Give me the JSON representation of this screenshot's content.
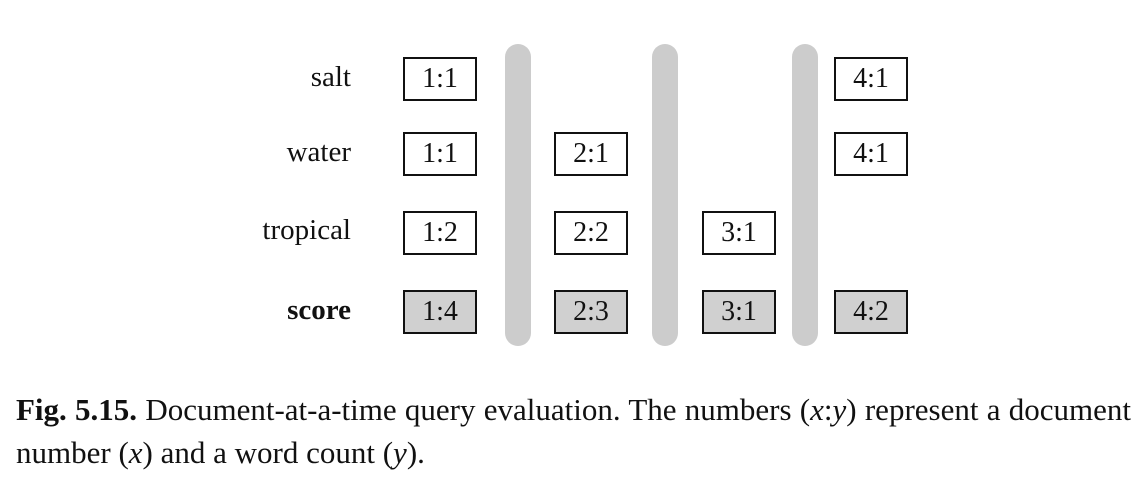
{
  "rows": [
    {
      "term": "salt"
    },
    {
      "term": "water"
    },
    {
      "term": "tropical"
    },
    {
      "term": "score"
    }
  ],
  "cells": {
    "salt": {
      "doc1": "1:1",
      "doc4": "4:1"
    },
    "water": {
      "doc1": "1:1",
      "doc2": "2:1",
      "doc4": "4:1"
    },
    "tropical": {
      "doc1": "1:2",
      "doc2": "2:2",
      "doc3": "3:1"
    },
    "score": {
      "doc1": "1:4",
      "doc2": "2:3",
      "doc3": "3:1",
      "doc4": "4:2"
    }
  },
  "caption": {
    "fig_label": "Fig. 5.15.",
    "text_1": " Document-at-a-time query evaluation. The numbers (",
    "math_xy": "x",
    "colon": ":",
    "math_y": "y",
    "text_2": ") represent a document number (",
    "math_x2": "x",
    "text_3": ") and a word count (",
    "math_y2": "y",
    "text_4": ")."
  },
  "colors": {
    "cell_border": "#111111",
    "score_fill": "#d0d0d0",
    "divider": "#cccccc"
  }
}
